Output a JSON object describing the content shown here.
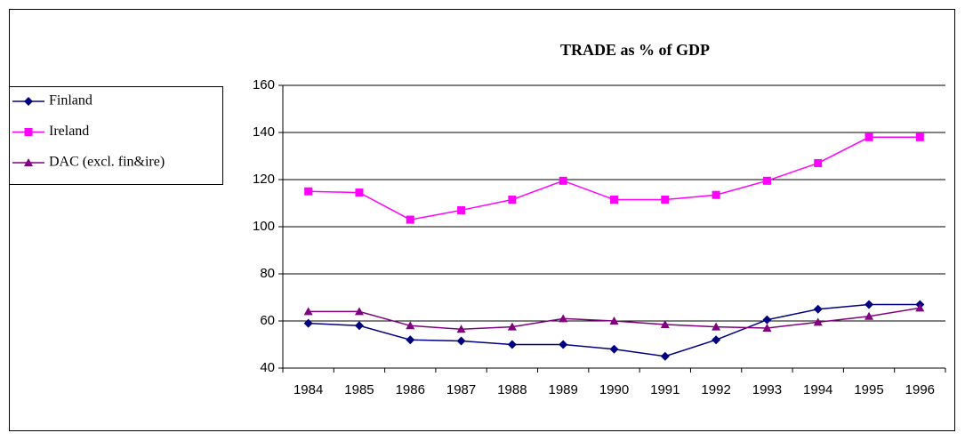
{
  "chart_data": {
    "type": "line",
    "title": "TRADE as % of GDP",
    "categories": [
      "1984",
      "1985",
      "1986",
      "1987",
      "1988",
      "1989",
      "1990",
      "1991",
      "1992",
      "1993",
      "1994",
      "1995",
      "1996"
    ],
    "series": [
      {
        "name": "Finland",
        "color": "#000080",
        "marker": "diamond",
        "values": [
          59,
          58,
          52,
          51.5,
          50,
          50,
          48,
          45,
          52,
          60.5,
          65,
          67,
          67
        ]
      },
      {
        "name": "Ireland",
        "color": "#ff00ff",
        "marker": "square",
        "values": [
          115,
          114.5,
          103,
          107,
          111.5,
          119.5,
          111.5,
          111.5,
          113.5,
          119.5,
          127,
          138,
          138
        ]
      },
      {
        "name": "DAC (excl. fin&ire)",
        "color": "#800080",
        "marker": "triangle",
        "values": [
          64,
          64,
          58,
          56.5,
          57.5,
          61,
          60,
          58.5,
          57.5,
          57,
          59.5,
          62,
          65.5
        ]
      }
    ],
    "ylim": [
      40,
      160
    ],
    "yticks": [
      40,
      60,
      80,
      100,
      120,
      140,
      160
    ],
    "grid": true,
    "legend": "left"
  }
}
